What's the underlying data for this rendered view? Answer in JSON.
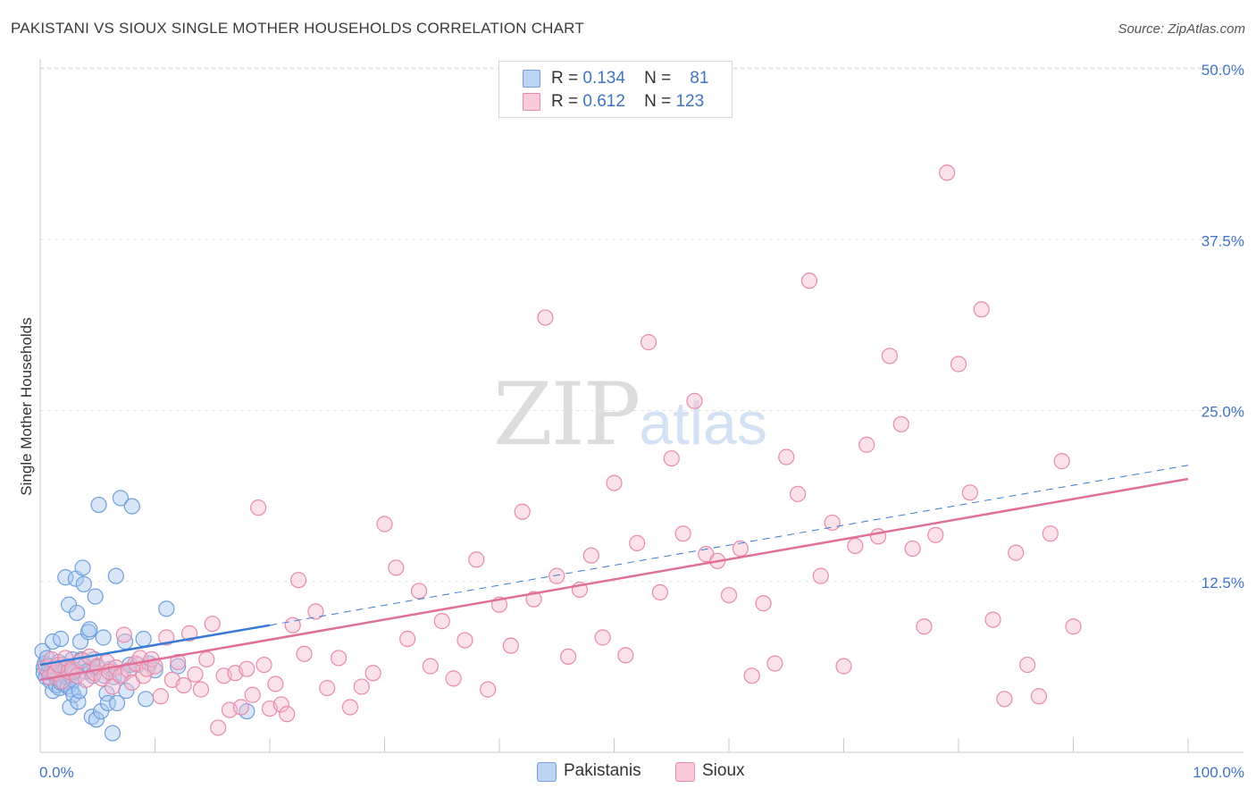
{
  "title": "PAKISTANI VS SIOUX SINGLE MOTHER HOUSEHOLDS CORRELATION CHART",
  "source": "Source: ZipAtlas.com",
  "watermark": {
    "zip": "ZIP",
    "atlas": "atlas"
  },
  "legend": {
    "r_label": "R =",
    "n_label": "N =",
    "rows": [
      {
        "r": "0.134",
        "n": "81"
      },
      {
        "r": "0.612",
        "n": "123"
      }
    ]
  },
  "colors": {
    "blue_fill": "#a9c8f0",
    "blue_stroke": "#6f9fdc",
    "blue_line": "#3a7bd5",
    "pink_fill": "#f6bccf",
    "pink_stroke": "#e88aaa",
    "pink_line": "#e0709a",
    "axis_text": "#3f73c8",
    "grid": "#e2e2e2"
  },
  "chart_data": {
    "type": "scatter",
    "title": "PAKISTANI VS SIOUX SINGLE MOTHER HOUSEHOLDS CORRELATION CHART",
    "xlabel": "",
    "ylabel": "Single Mother Households",
    "xlim": [
      0,
      100
    ],
    "ylim": [
      0,
      50
    ],
    "x_tick_labels": [
      "0.0%",
      "100.0%"
    ],
    "y_ticks": [
      {
        "value": 12.5,
        "label": "12.5%"
      },
      {
        "value": 25.0,
        "label": "25.0%"
      },
      {
        "value": 37.5,
        "label": "37.5%"
      },
      {
        "value": 50.0,
        "label": "50.0%"
      }
    ],
    "series": [
      {
        "name": "Pakistanis",
        "color": "blue",
        "r": 0.134,
        "n": 81,
        "trend": {
          "x0": 0,
          "y0": 6.4,
          "x1": 20,
          "y1": 9.3,
          "dash_to_x": 100,
          "dash_to_y": 21.0
        },
        "points": [
          [
            0.2,
            7.4
          ],
          [
            0.3,
            6.2
          ],
          [
            0.3,
            5.8
          ],
          [
            0.4,
            6.5
          ],
          [
            0.5,
            5.5
          ],
          [
            0.6,
            6.9
          ],
          [
            0.7,
            5.9
          ],
          [
            0.8,
            6.3
          ],
          [
            0.9,
            5.2
          ],
          [
            1.0,
            6.0
          ],
          [
            1.1,
            4.5
          ],
          [
            1.2,
            5.7
          ],
          [
            1.3,
            6.2
          ],
          [
            1.4,
            4.9
          ],
          [
            1.5,
            5.4
          ],
          [
            1.6,
            6.6
          ],
          [
            1.7,
            4.7
          ],
          [
            1.8,
            5.1
          ],
          [
            1.9,
            5.9
          ],
          [
            2.0,
            6.4
          ],
          [
            2.1,
            5.0
          ],
          [
            2.2,
            6.1
          ],
          [
            2.3,
            5.5
          ],
          [
            2.4,
            4.8
          ],
          [
            2.5,
            6.3
          ],
          [
            2.6,
            5.6
          ],
          [
            2.7,
            4.6
          ],
          [
            2.8,
            6.8
          ],
          [
            2.9,
            5.3
          ],
          [
            3.0,
            6.0
          ],
          [
            1.1,
            8.1
          ],
          [
            1.8,
            8.3
          ],
          [
            2.2,
            12.8
          ],
          [
            2.5,
            10.8
          ],
          [
            2.6,
            3.3
          ],
          [
            2.9,
            4.2
          ],
          [
            3.0,
            5.9
          ],
          [
            3.1,
            12.7
          ],
          [
            3.2,
            10.2
          ],
          [
            3.3,
            3.7
          ],
          [
            3.4,
            4.5
          ],
          [
            3.5,
            8.1
          ],
          [
            3.6,
            6.8
          ],
          [
            3.7,
            13.5
          ],
          [
            3.8,
            12.3
          ],
          [
            3.9,
            6.3
          ],
          [
            4.0,
            5.9
          ],
          [
            4.2,
            8.8
          ],
          [
            4.3,
            9.0
          ],
          [
            4.4,
            6.1
          ],
          [
            4.5,
            2.6
          ],
          [
            4.6,
            5.6
          ],
          [
            4.7,
            6.8
          ],
          [
            4.8,
            11.4
          ],
          [
            4.9,
            2.4
          ],
          [
            5.0,
            6.2
          ],
          [
            5.1,
            18.1
          ],
          [
            5.3,
            3.0
          ],
          [
            5.5,
            8.4
          ],
          [
            5.6,
            5.6
          ],
          [
            5.8,
            4.3
          ],
          [
            5.9,
            3.6
          ],
          [
            6.1,
            6.1
          ],
          [
            6.3,
            1.4
          ],
          [
            6.4,
            5.5
          ],
          [
            6.6,
            12.9
          ],
          [
            6.7,
            3.6
          ],
          [
            7.0,
            18.6
          ],
          [
            7.2,
            5.7
          ],
          [
            7.4,
            8.1
          ],
          [
            7.5,
            4.5
          ],
          [
            7.8,
            6.4
          ],
          [
            8.0,
            18.0
          ],
          [
            8.5,
            6.4
          ],
          [
            9.0,
            8.3
          ],
          [
            9.2,
            3.9
          ],
          [
            9.5,
            6.5
          ],
          [
            10.0,
            6.0
          ],
          [
            11.0,
            10.5
          ],
          [
            18.0,
            3.0
          ],
          [
            12.0,
            6.3
          ]
        ]
      },
      {
        "name": "Sioux",
        "color": "pink",
        "r": 0.612,
        "n": 123,
        "trend": {
          "x0": 0,
          "y0": 5.3,
          "x1": 100,
          "y1": 20.0
        },
        "points": [
          [
            0.5,
            6.2
          ],
          [
            0.8,
            5.5
          ],
          [
            1.0,
            6.8
          ],
          [
            1.3,
            5.8
          ],
          [
            1.6,
            6.4
          ],
          [
            1.9,
            5.2
          ],
          [
            2.2,
            6.9
          ],
          [
            2.5,
            5.9
          ],
          [
            2.8,
            6.1
          ],
          [
            3.2,
            5.6
          ],
          [
            3.6,
            6.7
          ],
          [
            4.0,
            5.3
          ],
          [
            4.3,
            7.0
          ],
          [
            4.7,
            5.8
          ],
          [
            5.0,
            6.3
          ],
          [
            5.4,
            5.4
          ],
          [
            5.8,
            6.6
          ],
          [
            6.0,
            5.9
          ],
          [
            6.3,
            4.8
          ],
          [
            6.6,
            6.2
          ],
          [
            7.0,
            5.6
          ],
          [
            7.3,
            8.6
          ],
          [
            7.7,
            6.0
          ],
          [
            8.0,
            5.1
          ],
          [
            8.3,
            6.5
          ],
          [
            8.7,
            6.9
          ],
          [
            9.0,
            5.6
          ],
          [
            9.3,
            6.1
          ],
          [
            9.7,
            6.8
          ],
          [
            10.0,
            6.3
          ],
          [
            10.5,
            4.1
          ],
          [
            11.0,
            8.4
          ],
          [
            11.5,
            5.3
          ],
          [
            12.0,
            6.6
          ],
          [
            12.5,
            4.9
          ],
          [
            13.0,
            8.7
          ],
          [
            13.5,
            5.7
          ],
          [
            14.0,
            4.6
          ],
          [
            14.5,
            6.8
          ],
          [
            15.0,
            9.4
          ],
          [
            15.5,
            1.8
          ],
          [
            16.0,
            5.6
          ],
          [
            16.5,
            3.1
          ],
          [
            17.0,
            5.8
          ],
          [
            17.5,
            3.3
          ],
          [
            18.0,
            6.1
          ],
          [
            18.5,
            4.2
          ],
          [
            19.0,
            17.9
          ],
          [
            19.5,
            6.4
          ],
          [
            20.0,
            3.2
          ],
          [
            20.5,
            5.0
          ],
          [
            21.0,
            3.5
          ],
          [
            21.5,
            2.8
          ],
          [
            22.0,
            9.3
          ],
          [
            22.5,
            12.6
          ],
          [
            23.0,
            7.2
          ],
          [
            24.0,
            10.3
          ],
          [
            25.0,
            4.7
          ],
          [
            26.0,
            6.9
          ],
          [
            27.0,
            3.3
          ],
          [
            28.0,
            4.8
          ],
          [
            29.0,
            5.8
          ],
          [
            30.0,
            16.7
          ],
          [
            31.0,
            13.5
          ],
          [
            32.0,
            8.3
          ],
          [
            33.0,
            11.8
          ],
          [
            34.0,
            6.3
          ],
          [
            35.0,
            9.6
          ],
          [
            36.0,
            5.4
          ],
          [
            37.0,
            8.2
          ],
          [
            38.0,
            14.1
          ],
          [
            39.0,
            4.6
          ],
          [
            40.0,
            10.8
          ],
          [
            41.0,
            7.8
          ],
          [
            42.0,
            17.6
          ],
          [
            43.0,
            11.2
          ],
          [
            44.0,
            31.8
          ],
          [
            45.0,
            12.9
          ],
          [
            46.0,
            7.0
          ],
          [
            47.0,
            11.9
          ],
          [
            48.0,
            14.4
          ],
          [
            49.0,
            8.4
          ],
          [
            50.0,
            19.7
          ],
          [
            51.0,
            7.1
          ],
          [
            52.0,
            15.3
          ],
          [
            53.0,
            30.0
          ],
          [
            54.0,
            11.7
          ],
          [
            55.0,
            21.5
          ],
          [
            56.0,
            16.0
          ],
          [
            57.0,
            25.7
          ],
          [
            58.0,
            14.5
          ],
          [
            59.0,
            14.0
          ],
          [
            60.0,
            11.5
          ],
          [
            61.0,
            14.9
          ],
          [
            62.0,
            5.6
          ],
          [
            63.0,
            10.9
          ],
          [
            64.0,
            6.5
          ],
          [
            65.0,
            21.6
          ],
          [
            66.0,
            18.9
          ],
          [
            67.0,
            34.5
          ],
          [
            68.0,
            12.9
          ],
          [
            69.0,
            16.8
          ],
          [
            70.0,
            6.3
          ],
          [
            71.0,
            15.1
          ],
          [
            72.0,
            22.5
          ],
          [
            73.0,
            15.8
          ],
          [
            74.0,
            29.0
          ],
          [
            75.0,
            24.0
          ],
          [
            76.0,
            14.9
          ],
          [
            77.0,
            9.2
          ],
          [
            78.0,
            15.9
          ],
          [
            79.0,
            42.4
          ],
          [
            80.0,
            28.4
          ],
          [
            81.0,
            19.0
          ],
          [
            82.0,
            32.4
          ],
          [
            83.0,
            9.7
          ],
          [
            84.0,
            3.9
          ],
          [
            85.0,
            14.6
          ],
          [
            86.0,
            6.4
          ],
          [
            87.0,
            4.1
          ],
          [
            88.0,
            16.0
          ],
          [
            89.0,
            21.3
          ],
          [
            90.0,
            9.2
          ]
        ]
      }
    ],
    "legend_entries": [
      "Pakistanis",
      "Sioux"
    ],
    "grid": true
  }
}
